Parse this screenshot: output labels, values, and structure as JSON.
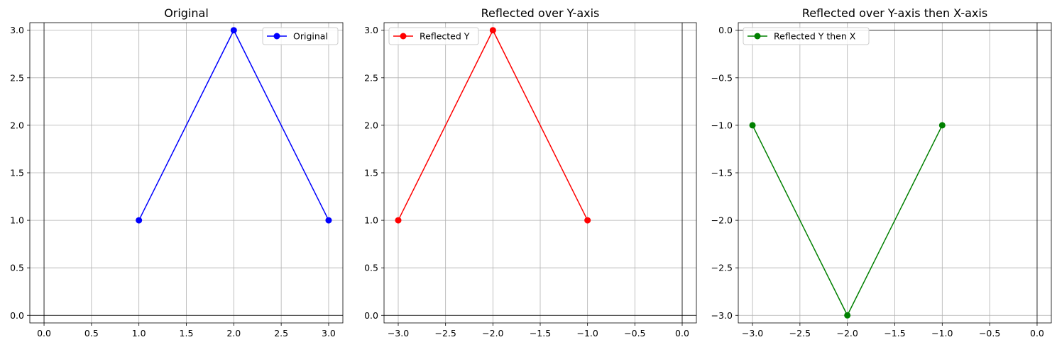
{
  "chart_data": [
    {
      "type": "line",
      "title": "Original",
      "xlabel": "",
      "ylabel": "",
      "xlim": [
        -0.15,
        3.15
      ],
      "ylim": [
        -0.08,
        3.08
      ],
      "xticks": [
        0.0,
        0.5,
        1.0,
        1.5,
        2.0,
        2.5,
        3.0
      ],
      "xtick_labels": [
        "0.0",
        "0.5",
        "1.0",
        "1.5",
        "2.0",
        "2.5",
        "3.0"
      ],
      "yticks": [
        0.0,
        0.5,
        1.0,
        1.5,
        2.0,
        2.5,
        3.0
      ],
      "ytick_labels": [
        "0.0",
        "0.5",
        "1.0",
        "1.5",
        "2.0",
        "2.5",
        "3.0"
      ],
      "grid": true,
      "legend": "top-right",
      "series": [
        {
          "name": "Original",
          "color": "#0000ff",
          "marker": "circle",
          "x": [
            1,
            2,
            3
          ],
          "y": [
            1,
            3,
            1
          ]
        }
      ]
    },
    {
      "type": "line",
      "title": "Reflected over Y-axis",
      "xlabel": "",
      "ylabel": "",
      "xlim": [
        -3.15,
        0.15
      ],
      "ylim": [
        -0.08,
        3.08
      ],
      "xticks": [
        -3.0,
        -2.5,
        -2.0,
        -1.5,
        -1.0,
        -0.5,
        0.0
      ],
      "xtick_labels": [
        "−3.0",
        "−2.5",
        "−2.0",
        "−1.5",
        "−1.0",
        "−0.5",
        "0.0"
      ],
      "yticks": [
        0.0,
        0.5,
        1.0,
        1.5,
        2.0,
        2.5,
        3.0
      ],
      "ytick_labels": [
        "0.0",
        "0.5",
        "1.0",
        "1.5",
        "2.0",
        "2.5",
        "3.0"
      ],
      "grid": true,
      "legend": "top-left",
      "series": [
        {
          "name": "Reflected Y",
          "color": "#ff0000",
          "marker": "circle",
          "x": [
            -3,
            -2,
            -1
          ],
          "y": [
            1,
            3,
            1
          ]
        }
      ]
    },
    {
      "type": "line",
      "title": "Reflected over Y-axis then X-axis",
      "xlabel": "",
      "ylabel": "",
      "xlim": [
        -3.15,
        0.15
      ],
      "ylim": [
        -3.08,
        0.08
      ],
      "xticks": [
        -3.0,
        -2.5,
        -2.0,
        -1.5,
        -1.0,
        -0.5,
        0.0
      ],
      "xtick_labels": [
        "−3.0",
        "−2.5",
        "−2.0",
        "−1.5",
        "−1.0",
        "−0.5",
        "0.0"
      ],
      "yticks": [
        0.0,
        -0.5,
        -1.0,
        -1.5,
        -2.0,
        -2.5,
        -3.0
      ],
      "ytick_labels": [
        "0.0",
        "−0.5",
        "−1.0",
        "−1.5",
        "−2.0",
        "−2.5",
        "−3.0"
      ],
      "grid": true,
      "legend": "top-left",
      "series": [
        {
          "name": "Reflected Y then X",
          "color": "#008000",
          "marker": "circle",
          "x": [
            -3,
            -2,
            -1
          ],
          "y": [
            -1,
            -3,
            -1
          ]
        }
      ]
    }
  ]
}
